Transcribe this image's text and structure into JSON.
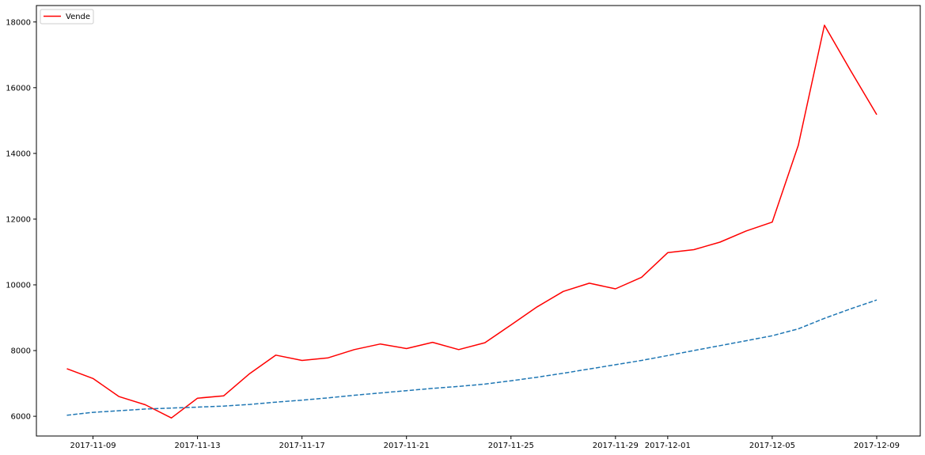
{
  "chart_data": {
    "type": "line",
    "title": "",
    "xlabel": "",
    "ylabel": "",
    "x_dates": [
      "2017-11-08",
      "2017-11-09",
      "2017-11-10",
      "2017-11-11",
      "2017-11-12",
      "2017-11-13",
      "2017-11-14",
      "2017-11-15",
      "2017-11-16",
      "2017-11-17",
      "2017-11-18",
      "2017-11-19",
      "2017-11-20",
      "2017-11-21",
      "2017-11-22",
      "2017-11-23",
      "2017-11-24",
      "2017-11-25",
      "2017-11-26",
      "2017-11-27",
      "2017-11-28",
      "2017-11-29",
      "2017-11-30",
      "2017-12-01",
      "2017-12-02",
      "2017-12-03",
      "2017-12-04",
      "2017-12-05",
      "2017-12-06",
      "2017-12-07",
      "2017-12-08",
      "2017-12-09"
    ],
    "x_ticks": [
      "2017-11-09",
      "2017-11-13",
      "2017-11-17",
      "2017-11-21",
      "2017-11-25",
      "2017-11-29",
      "2017-12-01",
      "2017-12-05",
      "2017-12-09"
    ],
    "y_ticks": [
      6000,
      8000,
      10000,
      12000,
      14000,
      16000,
      18000
    ],
    "xlim": [
      "2017-11-06T20:00",
      "2017-12-10T16:00"
    ],
    "ylim": [
      5400,
      18500
    ],
    "grid": false,
    "legend_position": "top-left",
    "series": [
      {
        "name": "Vende",
        "color": "#ff0000",
        "style": "solid",
        "values": [
          7450,
          7150,
          6600,
          6350,
          5950,
          6550,
          6620,
          7300,
          7860,
          7700,
          7780,
          8030,
          8200,
          8060,
          8250,
          8030,
          8240,
          8780,
          9330,
          9800,
          10050,
          9880,
          10230,
          10980,
          11070,
          11300,
          11640,
          11910,
          14250,
          17900,
          16520,
          15180
        ]
      },
      {
        "name": "",
        "color": "#1f77b4",
        "style": "dashed",
        "values": [
          6030,
          6120,
          6170,
          6220,
          6250,
          6280,
          6310,
          6360,
          6430,
          6490,
          6560,
          6640,
          6710,
          6780,
          6850,
          6910,
          6980,
          7080,
          7190,
          7310,
          7440,
          7570,
          7700,
          7850,
          8000,
          8150,
          8300,
          8450,
          8660,
          8980,
          9270,
          9540
        ]
      }
    ]
  }
}
